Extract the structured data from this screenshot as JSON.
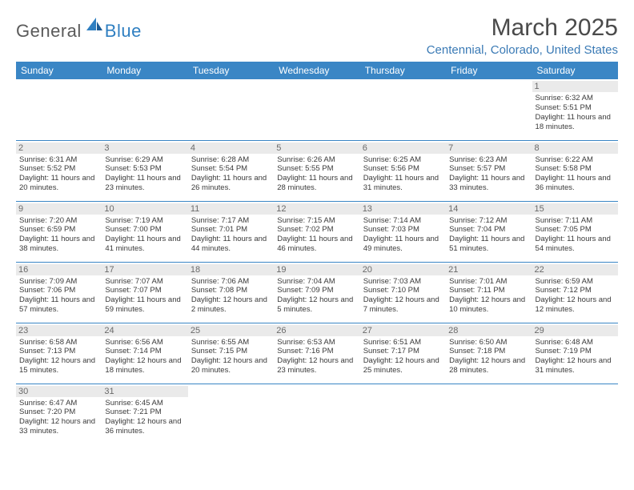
{
  "logo": {
    "general": "General",
    "blue": "Blue"
  },
  "title": "March 2025",
  "location": "Centennial, Colorado, United States",
  "header_bg": "#3a86c5",
  "border_color": "#3a86c5",
  "daynum_bg": "#eaeaea",
  "weekdays": [
    "Sunday",
    "Monday",
    "Tuesday",
    "Wednesday",
    "Thursday",
    "Friday",
    "Saturday"
  ],
  "weeks": [
    [
      null,
      null,
      null,
      null,
      null,
      null,
      {
        "n": "1",
        "sr": "6:32 AM",
        "ss": "5:51 PM",
        "dl": "11 hours and 18 minutes."
      }
    ],
    [
      {
        "n": "2",
        "sr": "6:31 AM",
        "ss": "5:52 PM",
        "dl": "11 hours and 20 minutes."
      },
      {
        "n": "3",
        "sr": "6:29 AM",
        "ss": "5:53 PM",
        "dl": "11 hours and 23 minutes."
      },
      {
        "n": "4",
        "sr": "6:28 AM",
        "ss": "5:54 PM",
        "dl": "11 hours and 26 minutes."
      },
      {
        "n": "5",
        "sr": "6:26 AM",
        "ss": "5:55 PM",
        "dl": "11 hours and 28 minutes."
      },
      {
        "n": "6",
        "sr": "6:25 AM",
        "ss": "5:56 PM",
        "dl": "11 hours and 31 minutes."
      },
      {
        "n": "7",
        "sr": "6:23 AM",
        "ss": "5:57 PM",
        "dl": "11 hours and 33 minutes."
      },
      {
        "n": "8",
        "sr": "6:22 AM",
        "ss": "5:58 PM",
        "dl": "11 hours and 36 minutes."
      }
    ],
    [
      {
        "n": "9",
        "sr": "7:20 AM",
        "ss": "6:59 PM",
        "dl": "11 hours and 38 minutes."
      },
      {
        "n": "10",
        "sr": "7:19 AM",
        "ss": "7:00 PM",
        "dl": "11 hours and 41 minutes."
      },
      {
        "n": "11",
        "sr": "7:17 AM",
        "ss": "7:01 PM",
        "dl": "11 hours and 44 minutes."
      },
      {
        "n": "12",
        "sr": "7:15 AM",
        "ss": "7:02 PM",
        "dl": "11 hours and 46 minutes."
      },
      {
        "n": "13",
        "sr": "7:14 AM",
        "ss": "7:03 PM",
        "dl": "11 hours and 49 minutes."
      },
      {
        "n": "14",
        "sr": "7:12 AM",
        "ss": "7:04 PM",
        "dl": "11 hours and 51 minutes."
      },
      {
        "n": "15",
        "sr": "7:11 AM",
        "ss": "7:05 PM",
        "dl": "11 hours and 54 minutes."
      }
    ],
    [
      {
        "n": "16",
        "sr": "7:09 AM",
        "ss": "7:06 PM",
        "dl": "11 hours and 57 minutes."
      },
      {
        "n": "17",
        "sr": "7:07 AM",
        "ss": "7:07 PM",
        "dl": "11 hours and 59 minutes."
      },
      {
        "n": "18",
        "sr": "7:06 AM",
        "ss": "7:08 PM",
        "dl": "12 hours and 2 minutes."
      },
      {
        "n": "19",
        "sr": "7:04 AM",
        "ss": "7:09 PM",
        "dl": "12 hours and 5 minutes."
      },
      {
        "n": "20",
        "sr": "7:03 AM",
        "ss": "7:10 PM",
        "dl": "12 hours and 7 minutes."
      },
      {
        "n": "21",
        "sr": "7:01 AM",
        "ss": "7:11 PM",
        "dl": "12 hours and 10 minutes."
      },
      {
        "n": "22",
        "sr": "6:59 AM",
        "ss": "7:12 PM",
        "dl": "12 hours and 12 minutes."
      }
    ],
    [
      {
        "n": "23",
        "sr": "6:58 AM",
        "ss": "7:13 PM",
        "dl": "12 hours and 15 minutes."
      },
      {
        "n": "24",
        "sr": "6:56 AM",
        "ss": "7:14 PM",
        "dl": "12 hours and 18 minutes."
      },
      {
        "n": "25",
        "sr": "6:55 AM",
        "ss": "7:15 PM",
        "dl": "12 hours and 20 minutes."
      },
      {
        "n": "26",
        "sr": "6:53 AM",
        "ss": "7:16 PM",
        "dl": "12 hours and 23 minutes."
      },
      {
        "n": "27",
        "sr": "6:51 AM",
        "ss": "7:17 PM",
        "dl": "12 hours and 25 minutes."
      },
      {
        "n": "28",
        "sr": "6:50 AM",
        "ss": "7:18 PM",
        "dl": "12 hours and 28 minutes."
      },
      {
        "n": "29",
        "sr": "6:48 AM",
        "ss": "7:19 PM",
        "dl": "12 hours and 31 minutes."
      }
    ],
    [
      {
        "n": "30",
        "sr": "6:47 AM",
        "ss": "7:20 PM",
        "dl": "12 hours and 33 minutes."
      },
      {
        "n": "31",
        "sr": "6:45 AM",
        "ss": "7:21 PM",
        "dl": "12 hours and 36 minutes."
      },
      null,
      null,
      null,
      null,
      null
    ]
  ],
  "labels": {
    "sunrise": "Sunrise: ",
    "sunset": "Sunset: ",
    "daylight": "Daylight: "
  }
}
